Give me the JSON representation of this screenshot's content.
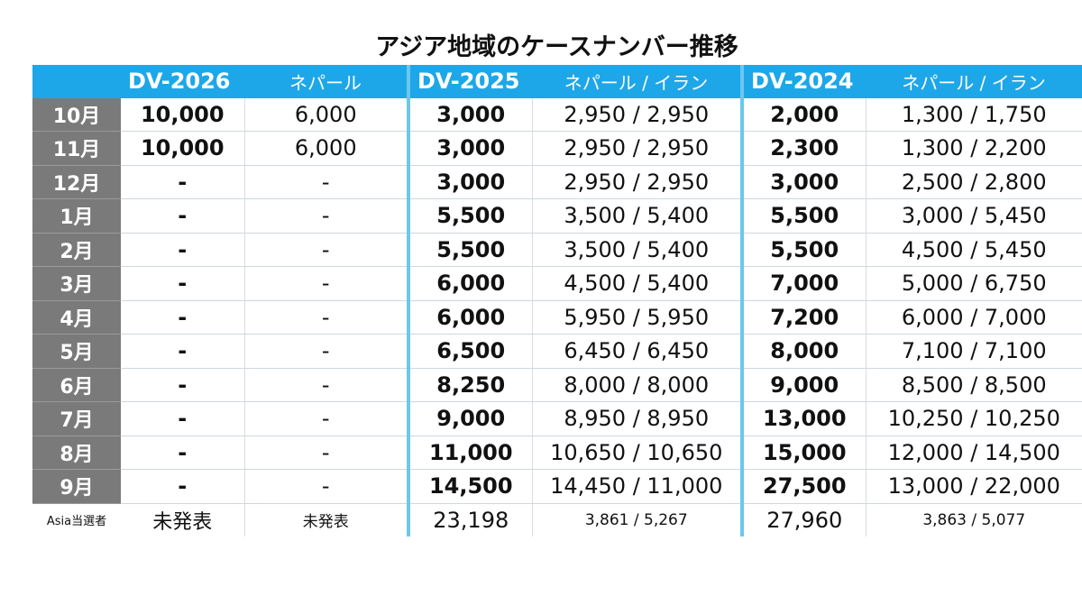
{
  "title": "アジア地域のケースナンバー推移",
  "headers": {
    "dv2026": "DV-2026",
    "dv2026_sub": "ネパール",
    "dv2025": "DV-2025",
    "dv2025_sub": "ネパール / イラン",
    "dv2024": "DV-2024",
    "dv2024_sub": "ネパール / イラン"
  },
  "rows": [
    {
      "month": "10月",
      "dv2026": "10,000",
      "dv2026_np": "6,000",
      "dv2025": "3,000",
      "dv2025_np_ir": "2,950 / 2,950",
      "dv2024": "2,000",
      "dv2024_np_ir": "1,300 / 1,750"
    },
    {
      "month": "11月",
      "dv2026": "10,000",
      "dv2026_np": "6,000",
      "dv2025": "3,000",
      "dv2025_np_ir": "2,950 / 2,950",
      "dv2024": "2,300",
      "dv2024_np_ir": "1,300 / 2,200"
    },
    {
      "month": "12月",
      "dv2026": "-",
      "dv2026_np": "-",
      "dv2025": "3,000",
      "dv2025_np_ir": "2,950 / 2,950",
      "dv2024": "3,000",
      "dv2024_np_ir": "2,500 / 2,800"
    },
    {
      "month": "1月",
      "dv2026": "-",
      "dv2026_np": "-",
      "dv2025": "5,500",
      "dv2025_np_ir": "3,500 / 5,400",
      "dv2024": "5,500",
      "dv2024_np_ir": "3,000 / 5,450"
    },
    {
      "month": "2月",
      "dv2026": "-",
      "dv2026_np": "-",
      "dv2025": "5,500",
      "dv2025_np_ir": "3,500 / 5,400",
      "dv2024": "5,500",
      "dv2024_np_ir": "4,500 / 5,450"
    },
    {
      "month": "3月",
      "dv2026": "-",
      "dv2026_np": "-",
      "dv2025": "6,000",
      "dv2025_np_ir": "4,500 / 5,400",
      "dv2024": "7,000",
      "dv2024_np_ir": "5,000 / 6,750"
    },
    {
      "month": "4月",
      "dv2026": "-",
      "dv2026_np": "-",
      "dv2025": "6,000",
      "dv2025_np_ir": "5,950 / 5,950",
      "dv2024": "7,200",
      "dv2024_np_ir": "6,000 / 7,000"
    },
    {
      "month": "5月",
      "dv2026": "-",
      "dv2026_np": "-",
      "dv2025": "6,500",
      "dv2025_np_ir": "6,450 / 6,450",
      "dv2024": "8,000",
      "dv2024_np_ir": "7,100 / 7,100"
    },
    {
      "month": "6月",
      "dv2026": "-",
      "dv2026_np": "-",
      "dv2025": "8,250",
      "dv2025_np_ir": "8,000 / 8,000",
      "dv2024": "9,000",
      "dv2024_np_ir": "8,500 / 8,500"
    },
    {
      "month": "7月",
      "dv2026": "-",
      "dv2026_np": "-",
      "dv2025": "9,000",
      "dv2025_np_ir": "8,950 / 8,950",
      "dv2024": "13,000",
      "dv2024_np_ir": "10,250 / 10,250"
    },
    {
      "month": "8月",
      "dv2026": "-",
      "dv2026_np": "-",
      "dv2025": "11,000",
      "dv2025_np_ir": "10,650 / 10,650",
      "dv2024": "15,000",
      "dv2024_np_ir": "12,000 / 14,500"
    },
    {
      "month": "9月",
      "dv2026": "-",
      "dv2026_np": "-",
      "dv2025": "14,500",
      "dv2025_np_ir": "14,450 / 11,000",
      "dv2024": "27,500",
      "dv2024_np_ir": "13,000 / 22,000"
    }
  ],
  "footer": {
    "label": "Asia当選者",
    "dv2026": "未発表",
    "dv2026_np": "未発表",
    "dv2025": "23,198",
    "dv2025_np_ir": "3,861 / 5,267",
    "dv2024": "27,960",
    "dv2024_np_ir": "3,863 / 5,077"
  },
  "colors": {
    "header_bg": "#1ea7e8",
    "month_bg": "#7a7a7a",
    "separator": "#6ec6ee"
  }
}
